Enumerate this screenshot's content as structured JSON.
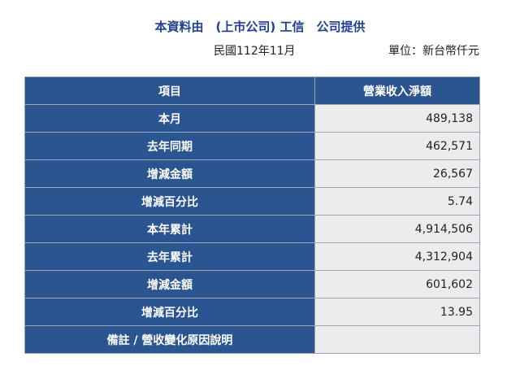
{
  "header": {
    "title": "本資料由　(上市公司) 工信　公司提供",
    "period": "民國112年11月",
    "unit": "單位：新台幣仟元"
  },
  "table": {
    "columns": [
      "項目",
      "營業收入淨額"
    ],
    "rows": [
      {
        "label": "本月",
        "value": "489,138"
      },
      {
        "label": "去年同期",
        "value": "462,571"
      },
      {
        "label": "增減金額",
        "value": "26,567"
      },
      {
        "label": "增減百分比",
        "value": "5.74"
      },
      {
        "label": "本年累計",
        "value": "4,914,506"
      },
      {
        "label": "去年累計",
        "value": "4,312,904"
      },
      {
        "label": "增減金額",
        "value": "601,602"
      },
      {
        "label": "增減百分比",
        "value": "13.95"
      },
      {
        "label": "備註 / 營收變化原因說明",
        "value": ""
      }
    ]
  },
  "colors": {
    "title": "#1f3f8f",
    "header_bg": "#2a5591",
    "value_bg": "#ececec"
  }
}
